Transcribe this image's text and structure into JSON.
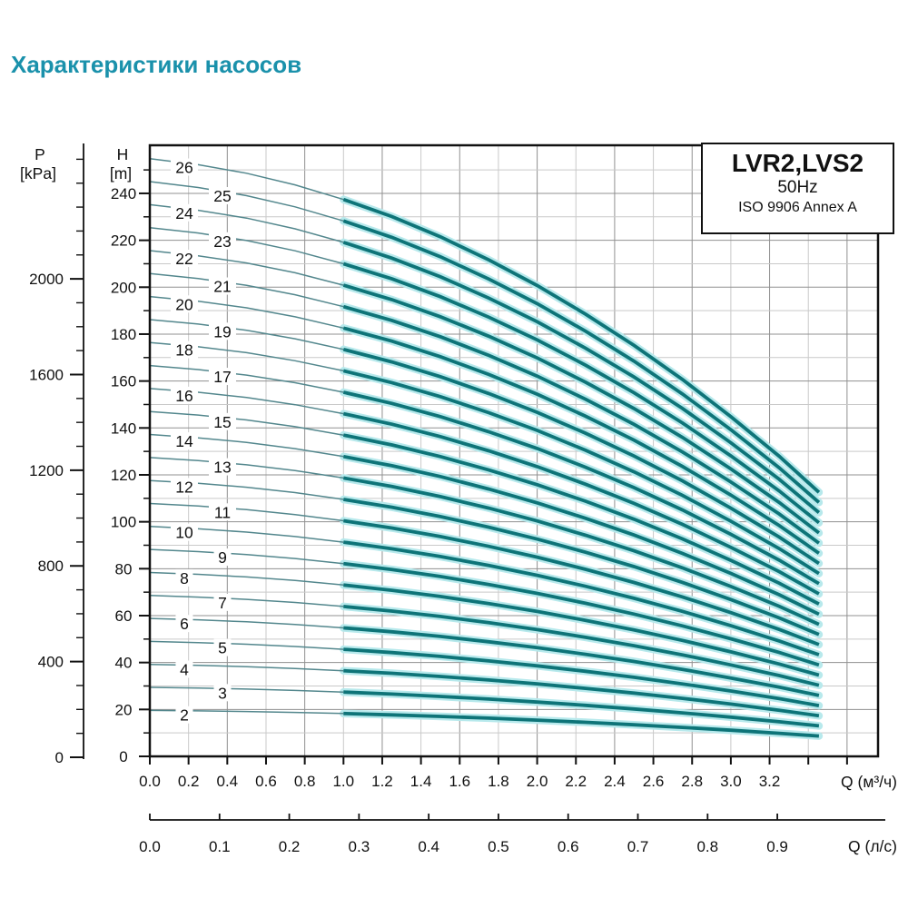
{
  "page_title": "Характеристики насосов",
  "title_color": "#1a91ab",
  "legend": {
    "model": "LVR2,LVS2",
    "frequency": "50Hz",
    "standard": "ISO 9906 Annex A"
  },
  "chart_data": {
    "type": "line",
    "title": "LVR2,LVS2 50Hz ISO 9906 Annex A pump performance curves",
    "x_axis_primary": {
      "label": "Q (м³/ч)",
      "tick_labels": [
        "0.0",
        "0.2",
        "0.4",
        "0.6",
        "0.8",
        "1.0",
        "1.2",
        "1.4",
        "1.6",
        "1.8",
        "2.0",
        "2.2",
        "2.4",
        "2.6",
        "2.8",
        "3.0",
        "3.2"
      ],
      "tick_step": 0.2,
      "unlabeled_ticks": [
        3.4,
        3.6
      ],
      "xlim": [
        0,
        3.76
      ]
    },
    "x_axis_secondary": {
      "label": "Q (л/с)",
      "tick_labels": [
        "0.0",
        "0.1",
        "0.2",
        "0.3",
        "0.4",
        "0.5",
        "0.6",
        "0.7",
        "0.8",
        "0.9"
      ],
      "tick_step": 0.1,
      "m3h_per_ls": 3.6
    },
    "y_axis_head": {
      "title_line1": "H",
      "title_line2": "[m]",
      "tick_labels": [
        "0",
        "20",
        "40",
        "60",
        "80",
        "100",
        "120",
        "140",
        "160",
        "180",
        "200",
        "220",
        "240"
      ],
      "major_step": 20,
      "minor_step": 10,
      "minor_max": 250,
      "ylim": [
        0,
        260.5
      ]
    },
    "y_axis_pressure": {
      "title_line1": "P",
      "title_line2": "[kPa]",
      "tick_labels": [
        "0",
        "400",
        "800",
        "1200",
        "1600",
        "2000"
      ],
      "major_step": 400,
      "minor_step": 100,
      "minor_max": 2500,
      "kpa_per_m": 9.8066
    },
    "stages": [
      2,
      3,
      4,
      5,
      6,
      7,
      8,
      9,
      10,
      11,
      12,
      13,
      14,
      15,
      16,
      17,
      18,
      19,
      20,
      21,
      22,
      23,
      24,
      25,
      26
    ],
    "per_stage_head_curve": {
      "q": [
        0,
        0.25,
        0.5,
        0.75,
        1.0,
        1.25,
        1.5,
        1.75,
        2.0,
        2.25,
        2.5,
        2.75,
        3.0,
        3.25,
        3.455
      ],
      "h": [
        9.8,
        9.7,
        9.56,
        9.37,
        9.13,
        8.85,
        8.52,
        8.14,
        7.72,
        7.25,
        6.74,
        6.18,
        5.57,
        4.92,
        4.33
      ]
    },
    "thick_range_q": [
      1.0,
      3.455
    ],
    "label_q_even": 0.178,
    "label_q_odd": 0.375,
    "grid": {
      "vertical_step": 0.2,
      "vertical_dark_step": 0.4,
      "horizontal_step": 10,
      "horizontal_dark_step": 20
    },
    "colors": {
      "curve_thin": "#53878d",
      "curve_thick": "#0e7478",
      "curve_halo": "#b7e9ec",
      "grid_light": "#c9c9c9",
      "grid_dark": "#909090",
      "frame": "#111111",
      "text": "#111111"
    }
  }
}
